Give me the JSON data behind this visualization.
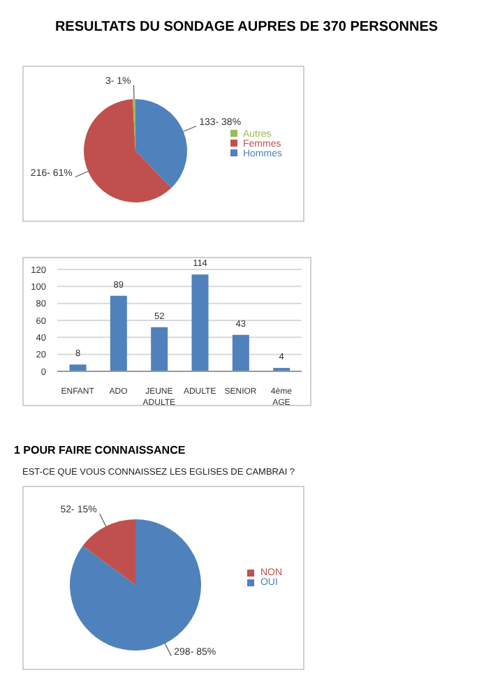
{
  "chart_data": [
    {
      "type": "pie",
      "title": "RESULTATS DU SONDAGE AUPRES DE 370 PERSONNES",
      "categories": [
        "Hommes",
        "Femmes",
        "Autres"
      ],
      "values": [
        133,
        216,
        3
      ],
      "colors": [
        "#4f81bd",
        "#c0504d",
        "#9bbb59"
      ],
      "value_labels": [
        "133- 38%",
        "216- 61%",
        "3- 1%"
      ],
      "legend": "right"
    },
    {
      "type": "bar",
      "categories": [
        "ENFANT",
        "ADO",
        "JEUNE ADULTE",
        "ADULTE",
        "SENIOR",
        "4ème AGE"
      ],
      "values": [
        8,
        89,
        52,
        114,
        43,
        4
      ],
      "color": "#4f81bd",
      "ylim": [
        0,
        120
      ],
      "yticks": [
        0,
        20,
        40,
        60,
        80,
        100,
        120
      ],
      "grid": "y",
      "data_labels": true,
      "legend": false
    },
    {
      "type": "pie",
      "title": "1 POUR FAIRE CONNAISSANCE",
      "subtitle": "EST-CE QUE VOUS CONNAISSEZ LES EGLISES DE CAMBRAI ?",
      "categories": [
        "OUI",
        "NON"
      ],
      "values": [
        298,
        52
      ],
      "colors": [
        "#4f81bd",
        "#c0504d"
      ],
      "value_labels": [
        "298- 85%",
        "52- 15%"
      ],
      "legend": "right"
    }
  ]
}
